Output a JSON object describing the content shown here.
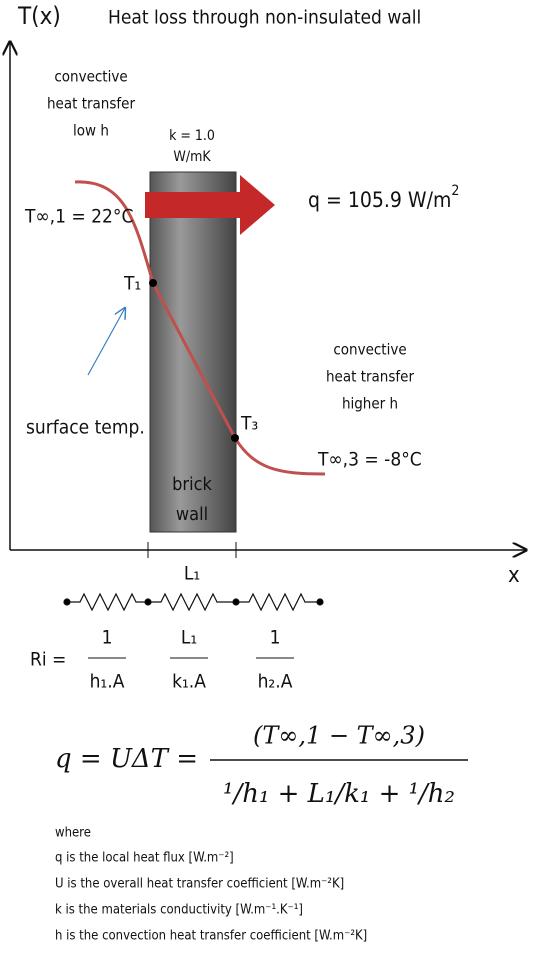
{
  "axes": {
    "y_label": "T(x)",
    "x_label": "x"
  },
  "title": "Heat loss through non-insulated wall",
  "left_region": {
    "lines": [
      "convective",
      "heat transfer",
      "low h"
    ],
    "temp": "T∞,1 = 22°C",
    "surface": "surface temp."
  },
  "wall": {
    "k_lines": [
      "k = 1.0",
      "W/mK"
    ],
    "name_lines": [
      "brick",
      "wall"
    ],
    "thickness": "L₁"
  },
  "flux": {
    "text": "q = 105.9 W/m",
    "exp": "2"
  },
  "points": {
    "t1": "T₁",
    "t3": "T₃"
  },
  "right_region": {
    "lines": [
      "convective",
      "heat transfer",
      "higher h"
    ],
    "temp": "T∞,3 = -8°C"
  },
  "resistances": {
    "label": "Ri =",
    "fractions": [
      [
        "1",
        "h₁.A"
      ],
      [
        "L₁",
        "k₁.A"
      ],
      [
        "1",
        "h₂.A"
      ]
    ]
  },
  "equation": {
    "lhs": "q = UΔT =",
    "numerator": "(T∞,1 − T∞,3)",
    "denominator": "¹/h₁ + L₁/k₁ + ¹/h₂"
  },
  "notes": [
    "where",
    "q is the local heat flux [W.m⁻²]",
    "U is the overall heat transfer coefficient [W.m⁻²K]",
    "k is the materials conductivity [W.m⁻¹.K⁻¹]",
    "h is the convection heat transfer coefficient [W.m⁻²K]"
  ]
}
